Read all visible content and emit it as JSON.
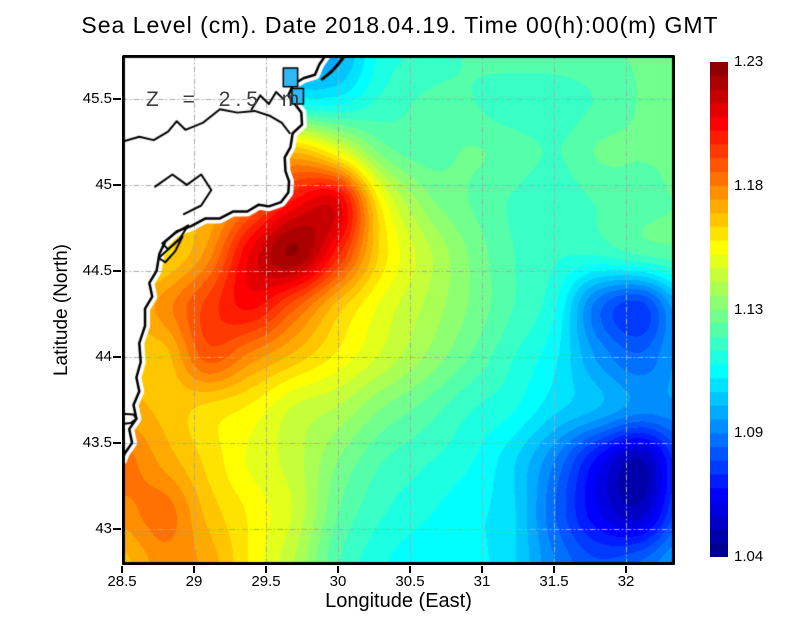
{
  "title": "Sea Level (cm). Date 2018.04.19. Time 00(h):00(m) GMT",
  "annotation": "Z = 2.5 m",
  "axes": {
    "x": {
      "label": "Longitude (East)",
      "range": [
        28.5,
        32.34
      ],
      "ticks": [
        28.5,
        29,
        29.5,
        30,
        30.5,
        31,
        31.5,
        32
      ],
      "tick_labels": [
        "28.5",
        "29",
        "29.5",
        "30",
        "30.5",
        "31",
        "31.5",
        "32"
      ]
    },
    "y": {
      "label": "Latitude (North)",
      "range": [
        42.79,
        45.755
      ],
      "ticks": [
        43,
        43.5,
        44,
        44.5,
        45,
        45.5
      ],
      "tick_labels": [
        "43",
        "43.5",
        "44",
        "44.5",
        "45",
        "45.5"
      ]
    }
  },
  "grid": {
    "color": "#a9a9a9",
    "style": "dash-dot"
  },
  "colorbar": {
    "min": 1.04,
    "max": 1.23,
    "bands": 36,
    "colormap": "jet",
    "labels": [
      "1.23",
      "1.18",
      "1.13",
      "1.09",
      "1.04"
    ],
    "label_values": [
      1.23,
      1.18,
      1.13,
      1.09,
      1.04
    ]
  },
  "chart_data": {
    "type": "heatmap",
    "title": "Sea Level (cm). Date 2018.04.19. Time 00(h):00(m) GMT",
    "xlabel": "Longitude (East)",
    "ylabel": "Latitude (North)",
    "xlim": [
      28.5,
      32.34
    ],
    "ylim": [
      42.79,
      45.755
    ],
    "zlim": [
      1.04,
      1.23
    ],
    "colormap": "jet",
    "grid": "dashed",
    "legend_position": "right-colorbar",
    "x": [
      28.5,
      28.8,
      29.1,
      29.4,
      29.7,
      30.0,
      30.3,
      30.6,
      30.9,
      31.2,
      31.5,
      31.8,
      32.1,
      32.4
    ],
    "y": [
      45.8,
      45.5,
      45.2,
      44.9,
      44.6,
      44.3,
      44.0,
      43.7,
      43.4,
      43.1,
      42.8
    ],
    "values": [
      [
        1.11,
        1.11,
        1.105,
        1.1,
        1.095,
        1.095,
        1.115,
        1.12,
        1.125,
        1.13,
        1.13,
        1.13,
        1.13,
        1.13
      ],
      [
        1.13,
        1.13,
        1.125,
        1.12,
        1.11,
        1.11,
        1.12,
        1.125,
        1.125,
        1.12,
        1.12,
        1.125,
        1.13,
        1.13
      ],
      [
        1.15,
        1.15,
        1.15,
        1.16,
        1.17,
        1.155,
        1.133,
        1.127,
        1.13,
        1.128,
        1.124,
        1.13,
        1.13,
        1.13
      ],
      [
        1.17,
        1.17,
        1.17,
        1.185,
        1.205,
        1.21,
        1.16,
        1.138,
        1.13,
        1.124,
        1.12,
        1.125,
        1.128,
        1.13
      ],
      [
        1.16,
        1.165,
        1.18,
        1.21,
        1.225,
        1.2,
        1.165,
        1.148,
        1.135,
        1.125,
        1.12,
        1.12,
        1.125,
        1.128
      ],
      [
        1.17,
        1.18,
        1.195,
        1.205,
        1.19,
        1.17,
        1.155,
        1.145,
        1.135,
        1.125,
        1.115,
        1.085,
        1.075,
        1.1
      ],
      [
        1.17,
        1.17,
        1.19,
        1.18,
        1.17,
        1.16,
        1.15,
        1.14,
        1.13,
        1.12,
        1.11,
        1.092,
        1.083,
        1.096
      ],
      [
        1.175,
        1.17,
        1.165,
        1.16,
        1.15,
        1.145,
        1.135,
        1.128,
        1.12,
        1.115,
        1.105,
        1.098,
        1.09,
        1.092
      ],
      [
        1.185,
        1.175,
        1.165,
        1.155,
        1.148,
        1.135,
        1.125,
        1.12,
        1.115,
        1.105,
        1.088,
        1.065,
        1.05,
        1.078
      ],
      [
        1.18,
        1.185,
        1.17,
        1.16,
        1.15,
        1.13,
        1.12,
        1.115,
        1.11,
        1.105,
        1.083,
        1.062,
        1.053,
        1.082
      ],
      [
        1.17,
        1.18,
        1.175,
        1.16,
        1.145,
        1.125,
        1.115,
        1.11,
        1.11,
        1.105,
        1.088,
        1.078,
        1.083,
        1.095
      ]
    ]
  },
  "map": {
    "land_color": "#ffffff",
    "coast_color": "#000000",
    "coast_fringe_color": "#ffffff",
    "lake_color": "#30b8f4",
    "coastline": [
      [
        29.92,
        45.76
      ],
      [
        29.87,
        45.7
      ],
      [
        29.84,
        45.64
      ],
      [
        29.76,
        45.62
      ],
      [
        29.69,
        45.585
      ],
      [
        29.655,
        45.52
      ],
      [
        29.7,
        45.47
      ],
      [
        29.745,
        45.42
      ],
      [
        29.75,
        45.35
      ],
      [
        29.685,
        45.3
      ],
      [
        29.67,
        45.22
      ],
      [
        29.63,
        45.16
      ],
      [
        29.635,
        45.08
      ],
      [
        29.66,
        45.02
      ],
      [
        29.655,
        44.955
      ],
      [
        29.605,
        44.9
      ],
      [
        29.52,
        44.875
      ],
      [
        29.45,
        44.885
      ],
      [
        29.37,
        44.845
      ],
      [
        29.27,
        44.845
      ],
      [
        29.18,
        44.805
      ],
      [
        29.08,
        44.805
      ],
      [
        28.98,
        44.76
      ],
      [
        28.88,
        44.73
      ],
      [
        28.8,
        44.67
      ],
      [
        28.76,
        44.6
      ],
      [
        28.74,
        44.5
      ],
      [
        28.69,
        44.43
      ],
      [
        28.71,
        44.35
      ],
      [
        28.66,
        44.28
      ],
      [
        28.66,
        44.18
      ],
      [
        28.62,
        44.08
      ],
      [
        28.63,
        43.97
      ],
      [
        28.6,
        43.88
      ],
      [
        28.62,
        43.8
      ],
      [
        28.58,
        43.72
      ],
      [
        28.6,
        43.64
      ],
      [
        28.55,
        43.58
      ],
      [
        28.57,
        43.5
      ],
      [
        28.52,
        43.44
      ],
      [
        28.5,
        43.4
      ]
    ],
    "spit": [
      [
        30.05,
        45.755
      ],
      [
        30.0,
        45.7
      ],
      [
        29.95,
        45.655
      ],
      [
        29.89,
        45.615
      ]
    ],
    "inner_lines": [
      [
        [
          28.5,
          45.25
        ],
        [
          28.62,
          45.28
        ],
        [
          28.72,
          45.26
        ],
        [
          28.82,
          45.31
        ],
        [
          28.88,
          45.37
        ],
        [
          28.94,
          45.32
        ],
        [
          29.06,
          45.36
        ],
        [
          29.18,
          45.44
        ],
        [
          29.3,
          45.42
        ],
        [
          29.42,
          45.43
        ],
        [
          29.53,
          45.4
        ],
        [
          29.61,
          45.36
        ],
        [
          29.665,
          45.3
        ]
      ],
      [
        [
          29.4,
          45.44
        ],
        [
          29.46,
          45.52
        ],
        [
          29.52,
          45.47
        ],
        [
          29.57,
          45.54
        ],
        [
          29.62,
          45.5
        ]
      ],
      [
        [
          28.73,
          44.99
        ],
        [
          28.85,
          45.06
        ],
        [
          28.95,
          45.0
        ],
        [
          29.05,
          45.06
        ],
        [
          29.12,
          44.97
        ],
        [
          29.05,
          44.88
        ],
        [
          28.93,
          44.83
        ]
      ],
      [
        [
          28.5,
          43.67
        ],
        [
          28.58,
          43.665
        ],
        [
          28.6,
          43.64
        ],
        [
          28.56,
          43.615
        ],
        [
          28.5,
          43.61
        ]
      ],
      [
        [
          28.78,
          44.66
        ],
        [
          28.87,
          44.72
        ],
        [
          28.96,
          44.765
        ],
        [
          28.9,
          44.685
        ],
        [
          28.82,
          44.625
        ],
        [
          28.78,
          44.66
        ]
      ],
      [
        [
          28.755,
          44.575
        ],
        [
          28.84,
          44.64
        ],
        [
          28.92,
          44.7
        ],
        [
          28.87,
          44.615
        ],
        [
          28.8,
          44.55
        ],
        [
          28.755,
          44.575
        ]
      ]
    ],
    "lakes": [
      {
        "lon": [
          29.62,
          29.72
        ],
        "lat": [
          45.57,
          45.68
        ]
      },
      {
        "lon": [
          29.68,
          29.76
        ],
        "lat": [
          45.47,
          45.56
        ]
      }
    ]
  }
}
